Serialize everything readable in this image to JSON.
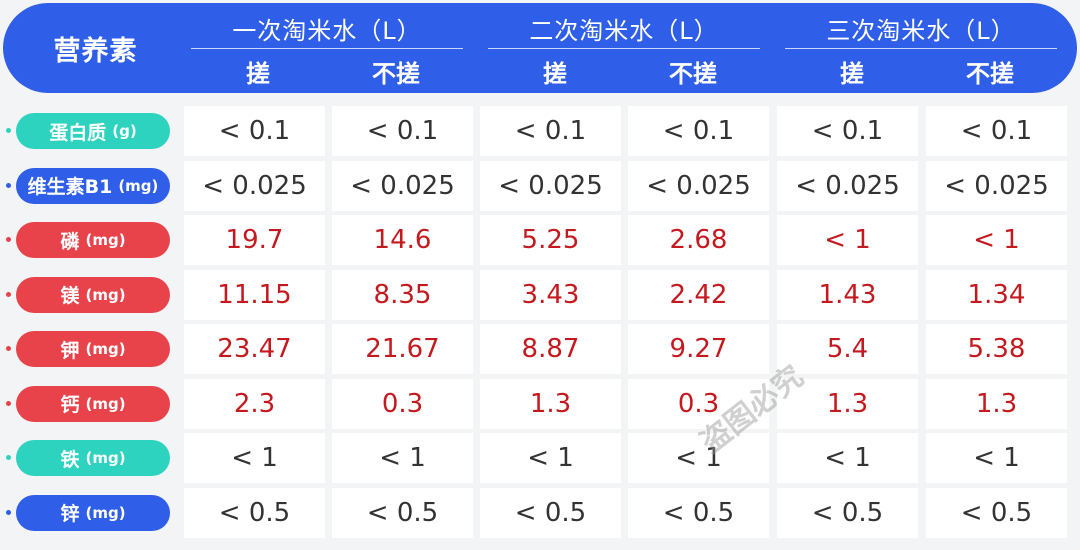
{
  "header": {
    "label": "营养素",
    "groups": [
      {
        "title": "一次淘米水（L）",
        "sub": [
          "搓",
          "不搓"
        ]
      },
      {
        "title": "二次淘米水（L）",
        "sub": [
          "搓",
          "不搓"
        ]
      },
      {
        "title": "三次淘米水（L）",
        "sub": [
          "搓",
          "不搓"
        ]
      }
    ]
  },
  "rows": [
    {
      "name": "蛋白质",
      "unit": "(g)",
      "color": "teal",
      "value_color": "dark",
      "values": [
        "< 0.1",
        "< 0.1",
        "< 0.1",
        "< 0.1",
        "< 0.1",
        "< 0.1"
      ]
    },
    {
      "name": "维生素B1",
      "unit": "(mg)",
      "color": "blue",
      "value_color": "dark",
      "values": [
        "< 0.025",
        "< 0.025",
        "< 0.025",
        "< 0.025",
        "< 0.025",
        "< 0.025"
      ]
    },
    {
      "name": "磷",
      "unit": "(mg)",
      "color": "red",
      "value_color": "red",
      "values": [
        "19.7",
        "14.6",
        "5.25",
        "2.68",
        "< 1",
        "< 1"
      ]
    },
    {
      "name": "镁",
      "unit": "(mg)",
      "color": "red",
      "value_color": "red",
      "values": [
        "11.15",
        "8.35",
        "3.43",
        "2.42",
        "1.43",
        "1.34"
      ]
    },
    {
      "name": "钾",
      "unit": "(mg)",
      "color": "red",
      "value_color": "red",
      "values": [
        "23.47",
        "21.67",
        "8.87",
        "9.27",
        "5.4",
        "5.38"
      ]
    },
    {
      "name": "钙",
      "unit": "(mg)",
      "color": "red",
      "value_color": "red",
      "values": [
        "2.3",
        "0.3",
        "1.3",
        "0.3",
        "1.3",
        "1.3"
      ]
    },
    {
      "name": "铁",
      "unit": "(mg)",
      "color": "teal",
      "value_color": "dark",
      "values": [
        "< 1",
        "< 1",
        "< 1",
        "< 1",
        "< 1",
        "< 1"
      ]
    },
    {
      "name": "锌",
      "unit": "(mg)",
      "color": "blue",
      "value_color": "dark",
      "values": [
        "< 0.5",
        "< 0.5",
        "< 0.5",
        "< 0.5",
        "< 0.5",
        "< 0.5"
      ]
    }
  ],
  "colors": {
    "teal": "#2ed3c0",
    "blue": "#2f5fe8",
    "red": "#e8434a",
    "value_red": "#c41a1f",
    "value_dark": "#333333"
  },
  "watermark": "盗图必究"
}
